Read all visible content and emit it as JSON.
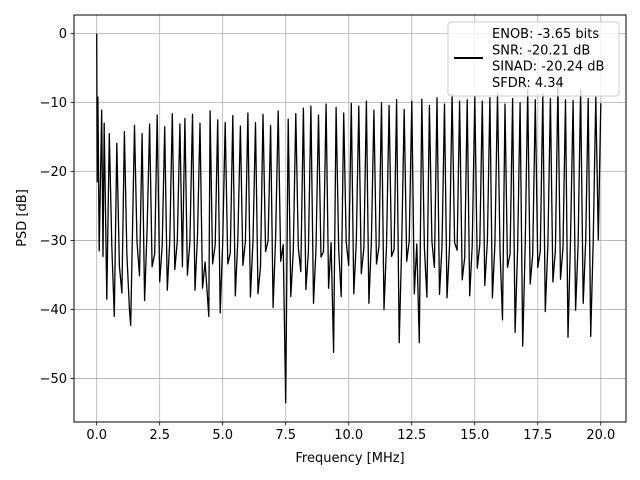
{
  "chart_data": {
    "type": "line",
    "xlabel": "Frequency [MHz]",
    "ylabel": "PSD [dB]",
    "xlim": [
      -0.9,
      21.0
    ],
    "ylim": [
      -56.3,
      2.7
    ],
    "xticks": [
      0.0,
      2.5,
      5.0,
      7.5,
      10.0,
      12.5,
      15.0,
      17.5,
      20.0
    ],
    "xtick_labels": [
      "0.0",
      "2.5",
      "5.0",
      "7.5",
      "10.0",
      "12.5",
      "15.0",
      "17.5",
      "20.0"
    ],
    "yticks": [
      0,
      -10,
      -20,
      -30,
      -40,
      -50
    ],
    "ytick_labels": [
      "0",
      "−10",
      "−20",
      "−30",
      "−40",
      "−50"
    ],
    "grid": true,
    "legend_position": "upper right",
    "series": [
      {
        "name": "ENOB: -3.65 bits\nSNR: -20.21 dB\nSINAD: -20.24 dB\nSFDR: 4.34",
        "color": "#000000",
        "description": "dense noise-like power spectral density spanning 0-20 MHz, values fluctuating mostly between about -10 and -32 dB",
        "x": [
          0.0,
          0.02,
          0.05,
          0.1,
          0.2,
          0.25,
          0.3,
          0.4,
          0.5,
          0.6,
          0.7,
          0.8,
          0.9,
          1.0,
          1.1,
          1.2,
          1.3,
          1.35,
          1.5,
          1.6,
          1.7,
          1.8,
          1.9,
          2.0,
          2.1,
          2.2,
          2.3,
          2.4,
          2.5,
          2.6,
          2.7,
          2.8,
          2.9,
          3.0,
          3.1,
          3.2,
          3.3,
          3.4,
          3.5,
          3.6,
          3.7,
          3.8,
          3.9,
          4.0,
          4.1,
          4.2,
          4.3,
          4.45,
          4.5,
          4.6,
          4.7,
          4.8,
          4.9,
          5.0,
          5.1,
          5.2,
          5.3,
          5.4,
          5.5,
          5.6,
          5.7,
          5.8,
          5.9,
          6.0,
          6.1,
          6.2,
          6.3,
          6.4,
          6.5,
          6.6,
          6.7,
          6.8,
          6.9,
          7.0,
          7.1,
          7.2,
          7.3,
          7.4,
          7.5,
          7.6,
          7.7,
          7.8,
          7.9,
          8.0,
          8.1,
          8.2,
          8.3,
          8.4,
          8.5,
          8.6,
          8.7,
          8.8,
          8.9,
          9.0,
          9.1,
          9.2,
          9.3,
          9.4,
          9.5,
          9.6,
          9.7,
          9.8,
          9.9,
          10.0,
          10.1,
          10.2,
          10.3,
          10.4,
          10.5,
          10.6,
          10.7,
          10.8,
          10.9,
          11.0,
          11.1,
          11.2,
          11.3,
          11.4,
          11.5,
          11.6,
          11.7,
          11.8,
          11.9,
          12.0,
          12.1,
          12.2,
          12.3,
          12.4,
          12.5,
          12.6,
          12.7,
          12.8,
          12.9,
          13.0,
          13.1,
          13.2,
          13.3,
          13.4,
          13.5,
          13.6,
          13.7,
          13.8,
          13.9,
          14.0,
          14.1,
          14.2,
          14.3,
          14.4,
          14.5,
          14.6,
          14.7,
          14.8,
          14.9,
          15.0,
          15.1,
          15.2,
          15.3,
          15.4,
          15.5,
          15.6,
          15.7,
          15.8,
          15.9,
          16.0,
          16.1,
          16.2,
          16.3,
          16.4,
          16.5,
          16.6,
          16.7,
          16.8,
          16.9,
          17.0,
          17.1,
          17.2,
          17.3,
          17.4,
          17.5,
          17.6,
          17.7,
          17.8,
          17.9,
          18.0,
          18.1,
          18.2,
          18.3,
          18.4,
          18.5,
          18.6,
          18.7,
          18.8,
          18.9,
          19.0,
          19.1,
          19.2,
          19.3,
          19.4,
          19.5,
          19.6,
          19.7,
          19.8,
          19.9,
          20.0
        ],
        "y": [
          0.0,
          -21.5,
          -9.2,
          -31.5,
          -11.1,
          -32.3,
          -13.0,
          -38.5,
          -14.5,
          -30.8,
          -41.0,
          -15.9,
          -33.7,
          -37.6,
          -14.2,
          -32.1,
          -40.1,
          -42.3,
          -13.3,
          -30.2,
          -35.1,
          -14.5,
          -38.7,
          -28.4,
          -13.1,
          -33.8,
          -31.9,
          -11.8,
          -36.0,
          -30.7,
          -13.5,
          -37.2,
          -29.9,
          -11.6,
          -34.2,
          -30.1,
          -13.1,
          -33.8,
          -12.3,
          -35.0,
          -30.2,
          -11.7,
          -37.2,
          -29.3,
          -13.0,
          -36.9,
          -33.1,
          -41.0,
          -11.2,
          -33.4,
          -30.6,
          -12.5,
          -40.5,
          -30.2,
          -12.9,
          -33.4,
          -31.8,
          -11.9,
          -38.0,
          -30.0,
          -13.4,
          -33.6,
          -30.1,
          -11.5,
          -38.2,
          -30.0,
          -12.9,
          -37.7,
          -33.8,
          -11.7,
          -31.6,
          -30.0,
          -13.3,
          -39.7,
          -29.6,
          -11.2,
          -33.0,
          -30.6,
          -53.5,
          -12.4,
          -38.1,
          -31.4,
          -11.6,
          -31.0,
          -34.5,
          -10.8,
          -37.1,
          -31.6,
          -10.5,
          -39.1,
          -31.2,
          -11.8,
          -32.4,
          -31.6,
          -10.2,
          -36.9,
          -30.3,
          -46.2,
          -10.7,
          -31.3,
          -38.1,
          -11.5,
          -30.2,
          -33.6,
          -10.1,
          -37.7,
          -30.2,
          -10.5,
          -34.8,
          -31.0,
          -9.8,
          -39.1,
          -30.0,
          -11.1,
          -33.4,
          -30.8,
          -10.0,
          -40.0,
          -30.8,
          -10.4,
          -32.3,
          -31.3,
          -9.6,
          -44.8,
          -30.7,
          -11.0,
          -33.0,
          -30.1,
          -9.8,
          -37.7,
          -30.5,
          -44.8,
          -9.5,
          -31.1,
          -38.2,
          -10.4,
          -30.1,
          -33.9,
          -9.3,
          -37.8,
          -30.8,
          -10.2,
          -38.3,
          -30.6,
          -8.8,
          -30.3,
          -31.4,
          -9.8,
          -35.7,
          -32.5,
          -9.6,
          -38.0,
          -30.8,
          -9.1,
          -34.0,
          -30.6,
          -9.8,
          -36.5,
          -30.0,
          -9.3,
          -38.3,
          -30.6,
          -8.7,
          -31.3,
          -41.5,
          -10.2,
          -33.9,
          -31.9,
          -9.4,
          -43.3,
          -31.3,
          -10.0,
          -45.3,
          -30.7,
          -8.2,
          -36.3,
          -32.0,
          -9.6,
          -33.9,
          -31.5,
          -8.7,
          -40.3,
          -30.5,
          -9.4,
          -36.0,
          -31.4,
          -7.4,
          -35.6,
          -31.0,
          -9.6,
          -44.0,
          -30.0,
          -9.7,
          -40.1,
          -30.6,
          -8.1,
          -39.1,
          -30.0,
          -9.4,
          -43.9,
          -30.1,
          -9.2,
          -29.9,
          -10.1
        ]
      }
    ]
  }
}
